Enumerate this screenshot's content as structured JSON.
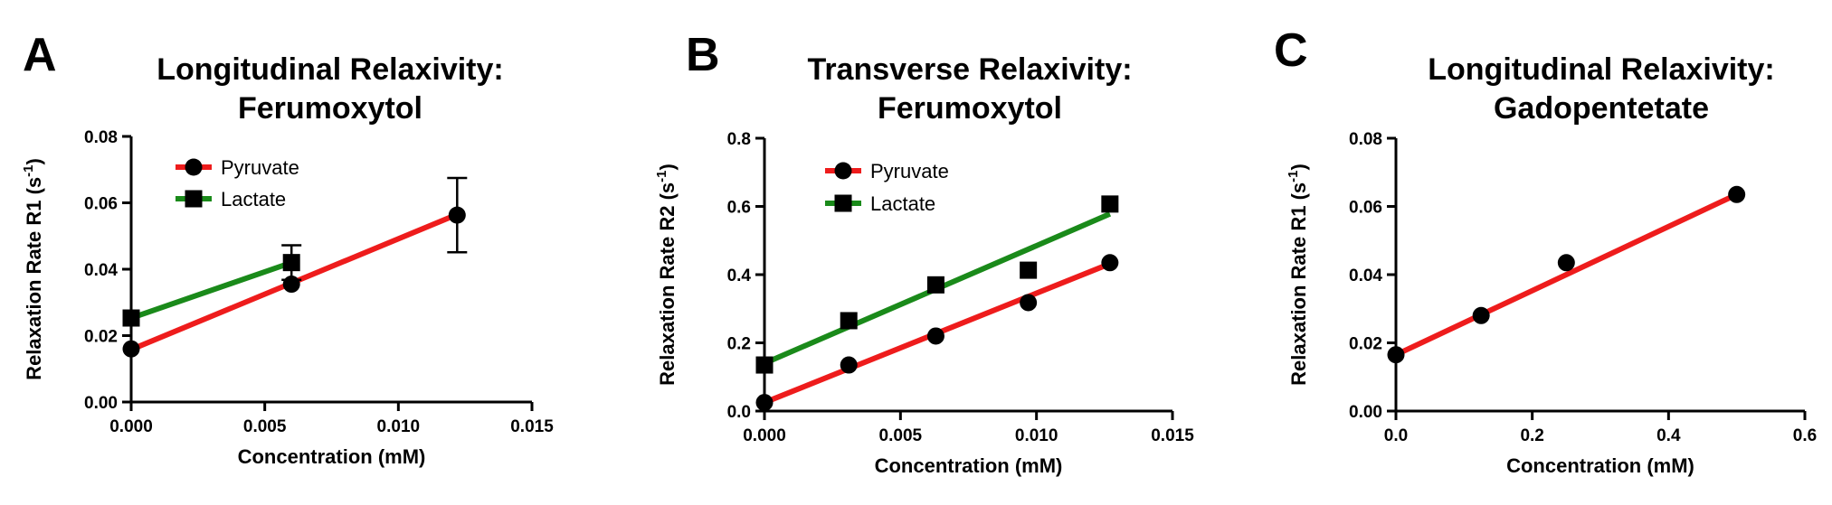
{
  "colors": {
    "pyruvate": "#ee1c1c",
    "lactate": "#1a8a1a",
    "axis": "#000000"
  },
  "chart_data": [
    {
      "type": "scatter",
      "panel": "A",
      "title_lines": [
        "Longitudinal Relaxivity:",
        "Ferumoxytol"
      ],
      "xlabel": "Concentration (mM)",
      "ylabel": "Relaxation Rate R1",
      "ylabel_unit": "(s",
      "ylabel_sup": "-1",
      "ylabel_close": ")",
      "xlim": [
        0,
        0.015
      ],
      "ylim": [
        0,
        0.08
      ],
      "xticks": [
        0,
        0.005,
        0.01,
        0.015
      ],
      "xtick_labels": [
        "0.000",
        "0.005",
        "0.010",
        "0.015"
      ],
      "yticks": [
        0,
        0.02,
        0.04,
        0.06,
        0.08
      ],
      "ytick_labels": [
        "0.00",
        "0.02",
        "0.04",
        "0.06",
        "0.08"
      ],
      "legend": [
        "Pyruvate",
        "Lactate"
      ],
      "series": [
        {
          "name": "Pyruvate",
          "marker": "circle",
          "color_key": "pyruvate",
          "x": [
            0,
            0.006,
            0.0122
          ],
          "y": [
            0.016,
            0.0355,
            0.0563
          ],
          "err": [
            null,
            null,
            0.0112
          ],
          "fit": [
            [
              0,
              0.0158
            ],
            [
              0.0122,
              0.0565
            ]
          ]
        },
        {
          "name": "Lactate",
          "marker": "square",
          "color_key": "lactate",
          "x": [
            0,
            0.006
          ],
          "y": [
            0.0253,
            0.042
          ],
          "err": [
            null,
            0.0052
          ],
          "fit": [
            [
              0,
              0.0253
            ],
            [
              0.006,
              0.042
            ]
          ]
        }
      ]
    },
    {
      "type": "scatter",
      "panel": "B",
      "title_lines": [
        "Transverse Relaxivity:",
        "Ferumoxytol"
      ],
      "xlabel": "Concentration (mM)",
      "ylabel": "Relaxation Rate R2",
      "ylabel_unit": "(s",
      "ylabel_sup": "-1",
      "ylabel_close": ")",
      "xlim": [
        0,
        0.015
      ],
      "ylim": [
        0,
        0.8
      ],
      "xticks": [
        0,
        0.005,
        0.01,
        0.015
      ],
      "xtick_labels": [
        "0.000",
        "0.005",
        "0.010",
        "0.015"
      ],
      "yticks": [
        0,
        0.2,
        0.4,
        0.6,
        0.8
      ],
      "ytick_labels": [
        "0.0",
        "0.2",
        "0.4",
        "0.6",
        "0.8"
      ],
      "legend": [
        "Pyruvate",
        "Lactate"
      ],
      "series": [
        {
          "name": "Pyruvate",
          "marker": "circle",
          "color_key": "pyruvate",
          "x": [
            0,
            0.0031,
            0.0063,
            0.0097,
            0.0127
          ],
          "y": [
            0.025,
            0.135,
            0.22,
            0.318,
            0.435
          ],
          "err": [
            null,
            null,
            null,
            null,
            null
          ],
          "fit": [
            [
              0,
              0.025
            ],
            [
              0.0127,
              0.432
            ]
          ]
        },
        {
          "name": "Lactate",
          "marker": "square",
          "color_key": "lactate",
          "x": [
            0,
            0.0031,
            0.0063,
            0.0097,
            0.0127
          ],
          "y": [
            0.135,
            0.265,
            0.37,
            0.413,
            0.607
          ],
          "err": [
            null,
            null,
            null,
            null,
            null
          ],
          "fit": [
            [
              0,
              0.14
            ],
            [
              0.0127,
              0.578
            ]
          ]
        }
      ]
    },
    {
      "type": "scatter",
      "panel": "C",
      "title_lines": [
        "Longitudinal Relaxivity:",
        "Gadopentetate"
      ],
      "xlabel": "Concentration (mM)",
      "ylabel": "Relaxation Rate R1",
      "ylabel_unit": "(s",
      "ylabel_sup": "-1",
      "ylabel_close": ")",
      "xlim": [
        0,
        0.6
      ],
      "ylim": [
        0,
        0.08
      ],
      "xticks": [
        0,
        0.2,
        0.4,
        0.6
      ],
      "xtick_labels": [
        "0.0",
        "0.2",
        "0.4",
        "0.6"
      ],
      "yticks": [
        0,
        0.02,
        0.04,
        0.06,
        0.08
      ],
      "ytick_labels": [
        "0.00",
        "0.02",
        "0.04",
        "0.06",
        "0.08"
      ],
      "legend": [],
      "series": [
        {
          "name": "Gadopentetate",
          "marker": "circle",
          "color_key": "pyruvate",
          "x": [
            0,
            0.125,
            0.25,
            0.5
          ],
          "y": [
            0.0165,
            0.028,
            0.0435,
            0.0635
          ],
          "err": [
            null,
            null,
            null,
            null
          ],
          "fit": [
            [
              0,
              0.0165
            ],
            [
              0.5,
              0.0635
            ]
          ]
        }
      ]
    }
  ]
}
